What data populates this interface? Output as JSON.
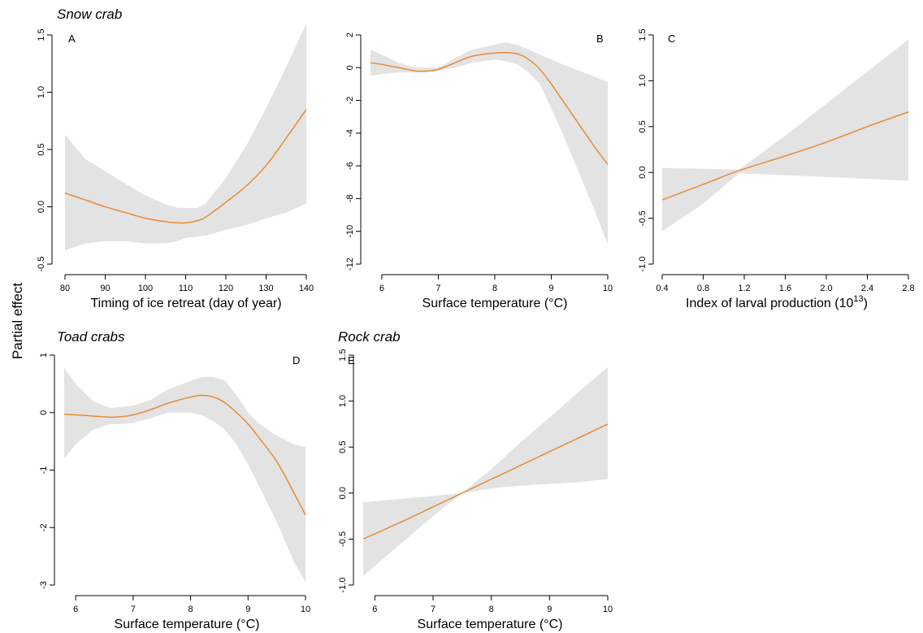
{
  "figure": {
    "ylabel": "Partial effect",
    "colors": {
      "line": "#e8862a",
      "band": "#e3e3e3",
      "axis": "#000000"
    }
  },
  "chart_data": [
    {
      "type": "line",
      "species": "Snow crab",
      "panel": "A",
      "xlabel": "Timing of ice retreat (day of year)",
      "xlim": [
        80,
        140
      ],
      "ylim": [
        -0.5,
        1.5
      ],
      "xticks": [
        80,
        90,
        100,
        110,
        120,
        130,
        140
      ],
      "xtick_labels": [
        "80",
        "90",
        "100",
        "110",
        "120",
        "130",
        "140"
      ],
      "yticks": [
        -0.5,
        0,
        0.5,
        1,
        1.5
      ],
      "ytick_labels": [
        "-0.5",
        "0.0",
        "0.5",
        "1.0",
        "1.5"
      ],
      "x": [
        80,
        85,
        90,
        95,
        100,
        105,
        108,
        110,
        113,
        115,
        120,
        125,
        130,
        135,
        140
      ],
      "fit": [
        0.12,
        0.06,
        0.0,
        -0.05,
        -0.1,
        -0.13,
        -0.14,
        -0.14,
        -0.12,
        -0.09,
        0.04,
        0.18,
        0.36,
        0.6,
        0.85
      ],
      "lower": [
        -0.38,
        -0.32,
        -0.3,
        -0.3,
        -0.32,
        -0.32,
        -0.3,
        -0.27,
        -0.26,
        -0.25,
        -0.2,
        -0.16,
        -0.1,
        -0.05,
        0.03
      ],
      "upper": [
        0.63,
        0.42,
        0.31,
        0.2,
        0.1,
        0.02,
        -0.01,
        -0.01,
        -0.01,
        0.03,
        0.25,
        0.53,
        0.86,
        1.22,
        1.6
      ]
    },
    {
      "type": "line",
      "panel": "B",
      "xlabel": "Surface temperature (°C)",
      "xlim": [
        5.8,
        10
      ],
      "ylim": [
        -12,
        2
      ],
      "xticks": [
        6,
        7,
        8,
        9,
        10
      ],
      "xtick_labels": [
        "6",
        "7",
        "8",
        "9",
        "10"
      ],
      "yticks": [
        -12,
        -10,
        -8,
        -6,
        -4,
        -2,
        0,
        2
      ],
      "ytick_labels": [
        "-12",
        "-10",
        "-8",
        "-6",
        "-4",
        "-2",
        "0",
        "2"
      ],
      "x": [
        5.8,
        6.0,
        6.3,
        6.6,
        6.8,
        7.0,
        7.3,
        7.6,
        8.0,
        8.2,
        8.4,
        8.6,
        8.8,
        9.0,
        9.2,
        9.5,
        9.8,
        10.0
      ],
      "fit": [
        0.3,
        0.2,
        0.0,
        -0.2,
        -0.2,
        -0.1,
        0.3,
        0.7,
        0.9,
        0.92,
        0.85,
        0.5,
        -0.1,
        -1.0,
        -2.0,
        -3.5,
        -5.0,
        -5.9
      ],
      "lower": [
        -0.5,
        -0.4,
        -0.3,
        -0.3,
        -0.3,
        -0.2,
        0.0,
        0.3,
        0.5,
        0.4,
        0.2,
        -0.3,
        -1.0,
        -2.5,
        -4.0,
        -6.5,
        -9.0,
        -10.8
      ],
      "upper": [
        1.1,
        0.8,
        0.3,
        0.0,
        0.0,
        0.0,
        0.6,
        1.1,
        1.4,
        1.55,
        1.4,
        1.1,
        0.8,
        0.5,
        0.2,
        -0.2,
        -0.6,
        -0.9
      ]
    },
    {
      "type": "line",
      "panel": "C",
      "xlabel": "Index of larval production (10",
      "xlabel_sup": "13",
      "xlabel_end": ")",
      "xlim": [
        0.4,
        2.8
      ],
      "ylim": [
        -1.0,
        1.5
      ],
      "xticks": [
        0.4,
        0.8,
        1.2,
        1.6,
        2.0,
        2.4,
        2.8
      ],
      "xtick_labels": [
        "0.4",
        "0.8",
        "1.2",
        "1.6",
        "2.0",
        "2.4",
        "2.8"
      ],
      "yticks": [
        -1,
        -0.5,
        0,
        0.5,
        1,
        1.5
      ],
      "ytick_labels": [
        "-1.0",
        "-0.5",
        "0.0",
        "0.5",
        "1.0",
        "1.5"
      ],
      "x": [
        0.4,
        0.8,
        1.15,
        1.6,
        2.0,
        2.4,
        2.8
      ],
      "fit": [
        -0.3,
        -0.13,
        0.02,
        0.18,
        0.33,
        0.5,
        0.66
      ],
      "lower": [
        -0.64,
        -0.34,
        -0.01,
        -0.03,
        -0.05,
        -0.07,
        -0.09
      ],
      "upper": [
        0.05,
        0.04,
        0.03,
        0.4,
        0.75,
        1.1,
        1.45
      ]
    },
    {
      "type": "line",
      "species": "Toad crabs",
      "panel": "D",
      "xlabel": "Surface temperature (°C)",
      "xlim": [
        5.8,
        10
      ],
      "ylim": [
        -3,
        1
      ],
      "xticks": [
        6,
        7,
        8,
        9,
        10
      ],
      "xtick_labels": [
        "6",
        "7",
        "8",
        "9",
        "10"
      ],
      "yticks": [
        -3,
        -2,
        -1,
        0,
        1
      ],
      "ytick_labels": [
        "-3",
        "-2",
        "-1",
        "0",
        "1"
      ],
      "x": [
        5.8,
        6.0,
        6.3,
        6.6,
        6.8,
        7.0,
        7.3,
        7.6,
        8.0,
        8.2,
        8.4,
        8.6,
        8.8,
        9.0,
        9.2,
        9.5,
        9.8,
        10.0
      ],
      "fit": [
        -0.03,
        -0.04,
        -0.06,
        -0.08,
        -0.07,
        -0.04,
        0.05,
        0.16,
        0.27,
        0.3,
        0.27,
        0.17,
        0.0,
        -0.2,
        -0.45,
        -0.85,
        -1.4,
        -1.78
      ],
      "lower": [
        -0.8,
        -0.55,
        -0.3,
        -0.2,
        -0.2,
        -0.18,
        -0.1,
        0.0,
        0.0,
        -0.05,
        -0.15,
        -0.3,
        -0.55,
        -0.9,
        -1.3,
        -1.9,
        -2.6,
        -2.95
      ],
      "upper": [
        0.78,
        0.5,
        0.2,
        0.08,
        0.1,
        0.12,
        0.22,
        0.4,
        0.55,
        0.62,
        0.62,
        0.55,
        0.3,
        0.0,
        -0.2,
        -0.4,
        -0.55,
        -0.6
      ]
    },
    {
      "type": "line",
      "species": "Rock crab",
      "panel": "E",
      "xlabel": "Surface temperature (°C)",
      "xlim": [
        5.8,
        10
      ],
      "ylim": [
        -1.0,
        1.5
      ],
      "xticks": [
        6,
        7,
        8,
        9,
        10
      ],
      "xtick_labels": [
        "6",
        "7",
        "8",
        "9",
        "10"
      ],
      "yticks": [
        -1,
        -0.5,
        0,
        0.5,
        1,
        1.5
      ],
      "ytick_labels": [
        "-1.0",
        "-0.5",
        "0.0",
        "0.5",
        "1.0",
        "1.5"
      ],
      "x": [
        5.8,
        6.5,
        7.0,
        7.5,
        8.0,
        8.5,
        9.0,
        9.5,
        10.0
      ],
      "fit": [
        -0.5,
        -0.3,
        -0.15,
        0.0,
        0.15,
        0.3,
        0.45,
        0.6,
        0.75
      ],
      "lower": [
        -0.9,
        -0.52,
        -0.25,
        0.0,
        0.05,
        0.08,
        0.1,
        0.12,
        0.15
      ],
      "upper": [
        -0.1,
        -0.06,
        -0.03,
        0.0,
        0.26,
        0.55,
        0.82,
        1.1,
        1.37
      ]
    }
  ]
}
